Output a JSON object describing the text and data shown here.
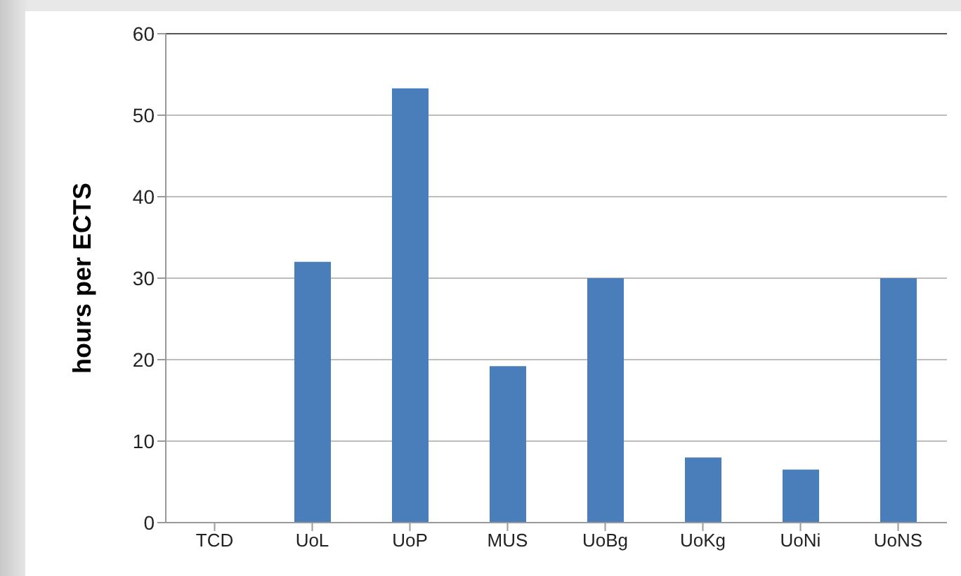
{
  "chart_data": {
    "type": "bar",
    "ylabel": "hours per ECTS",
    "categories": [
      "TCD",
      "UoL",
      "UoP",
      "MUS",
      "UoBg",
      "UoKg",
      "UoNi",
      "UoNS"
    ],
    "values": [
      0,
      32,
      53.3,
      19.2,
      30,
      8,
      6.5,
      30
    ],
    "color": "#4a7ebb",
    "ylim": [
      0,
      60
    ],
    "yticks": [
      0,
      10,
      20,
      30,
      40,
      50,
      60
    ],
    "grid": "y"
  }
}
